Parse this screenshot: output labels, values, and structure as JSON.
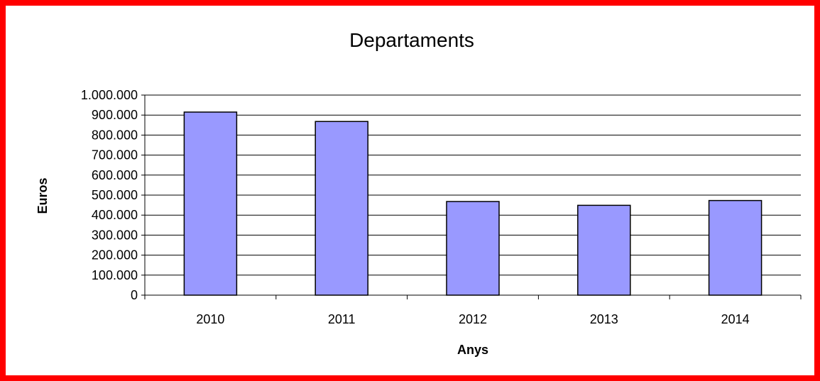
{
  "chart_data": {
    "type": "bar",
    "title": "Departaments",
    "xlabel": "Anys",
    "ylabel": "Euros",
    "categories": [
      "2010",
      "2011",
      "2012",
      "2013",
      "2014"
    ],
    "values": [
      915000,
      868000,
      468000,
      449000,
      473000
    ],
    "ylim": [
      0,
      1000000
    ],
    "y_ticks": [
      0,
      100000,
      200000,
      300000,
      400000,
      500000,
      600000,
      700000,
      800000,
      900000,
      1000000
    ],
    "y_tick_labels": [
      "0",
      "100.000",
      "200.000",
      "300.000",
      "400.000",
      "500.000",
      "600.000",
      "700.000",
      "800.000",
      "900.000",
      "1.000.000"
    ],
    "grid": true,
    "legend": "none",
    "bar_color": "#9999ff",
    "bar_edge_color": "#000000",
    "frame_color": "#ff0000"
  }
}
